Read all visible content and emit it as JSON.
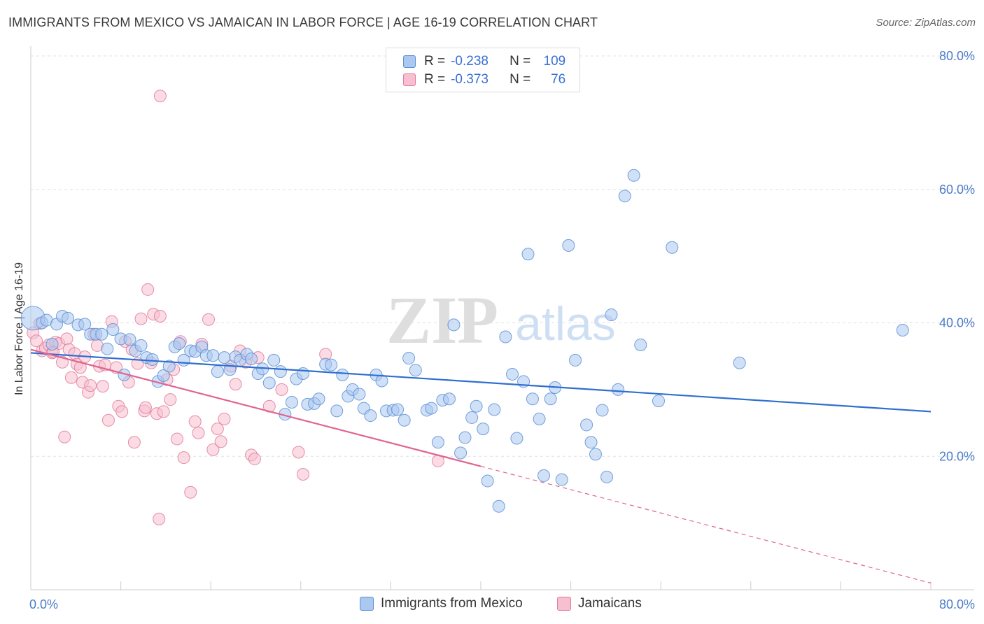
{
  "title": "IMMIGRANTS FROM MEXICO VS JAMAICAN IN LABOR FORCE | AGE 16-19 CORRELATION CHART",
  "source": "Source: ZipAtlas.com",
  "watermark": {
    "zip": "ZIP",
    "atlas": "atlas"
  },
  "legend": {
    "r_label": "R =",
    "n_label": "N =",
    "rows": [
      {
        "r": "-0.238",
        "n": "109",
        "fill": "#aac8f0",
        "stroke": "#5b8fd6"
      },
      {
        "r": "-0.373",
        "n": "76",
        "fill": "#f7bfd0",
        "stroke": "#e07b9c"
      }
    ]
  },
  "colors": {
    "blue_fill": "#aac8f0",
    "blue_stroke": "#5b8fd6",
    "blue_line": "#2f6fd0",
    "pink_fill": "#f7bfd0",
    "pink_stroke": "#e07b9c",
    "pink_line": "#e0658e",
    "grid": "#e0e0e0",
    "axis_label": "#4a7cc9"
  },
  "chart_data": {
    "type": "scatter",
    "ylabel": "In Labor Force | Age 16-19",
    "xlim": [
      0,
      80
    ],
    "ylim": [
      0,
      80
    ],
    "x_tick_labels": [
      "0.0%",
      "80.0%"
    ],
    "y_ticks": [
      20,
      40,
      60,
      80
    ],
    "y_tick_labels": [
      "20.0%",
      "40.0%",
      "60.0%",
      "80.0%"
    ],
    "series": [
      {
        "name": "Immigrants from Mexico",
        "color": "#aac8f0",
        "trend": {
          "x": [
            0,
            80
          ],
          "y": [
            35.5,
            26.7
          ],
          "dashed_from": null
        },
        "points": [
          [
            0.2,
            40.7
          ],
          [
            1.0,
            40.0
          ],
          [
            1.4,
            40.4
          ],
          [
            1.9,
            36.8
          ],
          [
            2.3,
            39.8
          ],
          [
            2.8,
            41.0
          ],
          [
            3.3,
            40.7
          ],
          [
            4.2,
            39.7
          ],
          [
            4.8,
            39.8
          ],
          [
            5.3,
            38.3
          ],
          [
            5.8,
            38.3
          ],
          [
            6.3,
            38.3
          ],
          [
            6.8,
            36.1
          ],
          [
            7.3,
            39.0
          ],
          [
            8.0,
            37.6
          ],
          [
            8.3,
            32.2
          ],
          [
            8.8,
            37.5
          ],
          [
            9.3,
            35.8
          ],
          [
            9.8,
            36.6
          ],
          [
            10.3,
            34.8
          ],
          [
            10.8,
            34.5
          ],
          [
            11.3,
            31.2
          ],
          [
            11.8,
            32.1
          ],
          [
            12.3,
            33.5
          ],
          [
            12.8,
            36.4
          ],
          [
            13.2,
            36.9
          ],
          [
            13.6,
            34.4
          ],
          [
            14.2,
            35.8
          ],
          [
            14.6,
            35.7
          ],
          [
            15.2,
            36.4
          ],
          [
            15.6,
            35.1
          ],
          [
            16.2,
            35.1
          ],
          [
            16.6,
            32.7
          ],
          [
            17.2,
            34.8
          ],
          [
            17.7,
            33.0
          ],
          [
            18.2,
            34.9
          ],
          [
            18.6,
            34.4
          ],
          [
            19.2,
            35.3
          ],
          [
            19.6,
            34.6
          ],
          [
            20.2,
            32.4
          ],
          [
            20.6,
            33.1
          ],
          [
            21.2,
            31.0
          ],
          [
            21.6,
            34.4
          ],
          [
            22.2,
            32.7
          ],
          [
            22.6,
            26.3
          ],
          [
            23.2,
            28.1
          ],
          [
            23.6,
            31.6
          ],
          [
            24.2,
            32.4
          ],
          [
            24.6,
            27.8
          ],
          [
            25.2,
            27.9
          ],
          [
            25.6,
            28.6
          ],
          [
            26.2,
            33.8
          ],
          [
            26.7,
            33.7
          ],
          [
            27.2,
            26.8
          ],
          [
            27.7,
            32.2
          ],
          [
            28.2,
            29.0
          ],
          [
            28.6,
            30.0
          ],
          [
            29.2,
            29.3
          ],
          [
            29.6,
            27.2
          ],
          [
            30.2,
            26.1
          ],
          [
            30.7,
            32.2
          ],
          [
            31.2,
            31.3
          ],
          [
            31.6,
            26.8
          ],
          [
            32.2,
            26.9
          ],
          [
            32.6,
            27.0
          ],
          [
            33.2,
            25.4
          ],
          [
            33.6,
            34.7
          ],
          [
            34.2,
            32.9
          ],
          [
            35.2,
            26.9
          ],
          [
            35.6,
            27.2
          ],
          [
            36.2,
            22.1
          ],
          [
            36.6,
            28.4
          ],
          [
            37.2,
            28.6
          ],
          [
            37.6,
            39.7
          ],
          [
            38.2,
            20.5
          ],
          [
            38.6,
            22.8
          ],
          [
            39.2,
            25.8
          ],
          [
            39.6,
            27.5
          ],
          [
            40.2,
            24.1
          ],
          [
            40.6,
            16.3
          ],
          [
            41.2,
            27.0
          ],
          [
            41.6,
            12.5
          ],
          [
            42.2,
            37.9
          ],
          [
            42.8,
            32.3
          ],
          [
            43.2,
            22.7
          ],
          [
            43.8,
            31.2
          ],
          [
            44.2,
            50.3
          ],
          [
            44.6,
            28.6
          ],
          [
            45.2,
            25.6
          ],
          [
            45.6,
            17.1
          ],
          [
            46.2,
            28.6
          ],
          [
            46.6,
            30.3
          ],
          [
            47.2,
            16.5
          ],
          [
            47.8,
            51.6
          ],
          [
            48.4,
            34.4
          ],
          [
            49.4,
            24.7
          ],
          [
            49.8,
            22.1
          ],
          [
            50.2,
            20.3
          ],
          [
            50.8,
            26.9
          ],
          [
            51.2,
            16.9
          ],
          [
            51.6,
            41.2
          ],
          [
            52.2,
            30.0
          ],
          [
            52.8,
            59.0
          ],
          [
            53.6,
            62.1
          ],
          [
            54.2,
            36.7
          ],
          [
            55.8,
            28.3
          ],
          [
            57.0,
            51.3
          ],
          [
            63.0,
            34.0
          ],
          [
            77.5,
            38.9
          ]
        ]
      },
      {
        "name": "Jamaicans",
        "color": "#f7bfd0",
        "trend": {
          "x": [
            0,
            80
          ],
          "y": [
            36.0,
            1.0
          ],
          "dashed_from": 40.0
        },
        "points": [
          [
            0.2,
            38.5
          ],
          [
            0.5,
            37.3
          ],
          [
            0.8,
            39.9
          ],
          [
            1.0,
            35.8
          ],
          [
            1.3,
            36.2
          ],
          [
            1.6,
            36.7
          ],
          [
            1.9,
            35.5
          ],
          [
            2.2,
            37.1
          ],
          [
            2.5,
            36.9
          ],
          [
            2.8,
            34.1
          ],
          [
            3.0,
            22.9
          ],
          [
            3.2,
            37.6
          ],
          [
            3.4,
            36.0
          ],
          [
            3.6,
            31.8
          ],
          [
            3.9,
            35.4
          ],
          [
            4.1,
            33.8
          ],
          [
            4.4,
            33.3
          ],
          [
            4.6,
            31.1
          ],
          [
            4.8,
            34.9
          ],
          [
            5.1,
            29.6
          ],
          [
            5.3,
            30.6
          ],
          [
            5.6,
            38.3
          ],
          [
            5.9,
            36.6
          ],
          [
            6.1,
            33.5
          ],
          [
            6.4,
            30.5
          ],
          [
            6.6,
            33.7
          ],
          [
            6.9,
            25.4
          ],
          [
            7.2,
            40.2
          ],
          [
            7.6,
            33.3
          ],
          [
            7.8,
            27.5
          ],
          [
            8.1,
            26.7
          ],
          [
            8.4,
            37.2
          ],
          [
            8.7,
            31.1
          ],
          [
            9.0,
            36.0
          ],
          [
            9.2,
            22.1
          ],
          [
            9.5,
            33.9
          ],
          [
            9.8,
            40.6
          ],
          [
            10.1,
            26.8
          ],
          [
            10.4,
            45.0
          ],
          [
            10.7,
            34.0
          ],
          [
            10.9,
            41.3
          ],
          [
            11.2,
            26.4
          ],
          [
            11.5,
            41.0
          ],
          [
            11.8,
            26.7
          ],
          [
            12.1,
            31.5
          ],
          [
            12.4,
            28.5
          ],
          [
            12.7,
            33.0
          ],
          [
            13.0,
            22.6
          ],
          [
            13.3,
            37.2
          ],
          [
            13.6,
            19.8
          ],
          [
            14.2,
            14.6
          ],
          [
            14.6,
            25.2
          ],
          [
            14.9,
            23.5
          ],
          [
            15.2,
            36.8
          ],
          [
            15.8,
            40.5
          ],
          [
            16.2,
            21.0
          ],
          [
            16.6,
            24.1
          ],
          [
            16.9,
            22.2
          ],
          [
            17.2,
            25.6
          ],
          [
            17.8,
            33.5
          ],
          [
            18.2,
            30.8
          ],
          [
            18.6,
            35.8
          ],
          [
            19.1,
            34.1
          ],
          [
            19.6,
            20.2
          ],
          [
            19.9,
            19.6
          ],
          [
            20.2,
            34.8
          ],
          [
            21.2,
            27.5
          ],
          [
            22.3,
            30.0
          ],
          [
            23.8,
            20.6
          ],
          [
            24.2,
            17.3
          ],
          [
            26.2,
            35.3
          ],
          [
            36.2,
            19.3
          ],
          [
            11.5,
            74.0
          ],
          [
            11.4,
            10.6
          ],
          [
            10.2,
            27.3
          ],
          [
            2.0,
            35.6
          ]
        ]
      }
    ]
  }
}
